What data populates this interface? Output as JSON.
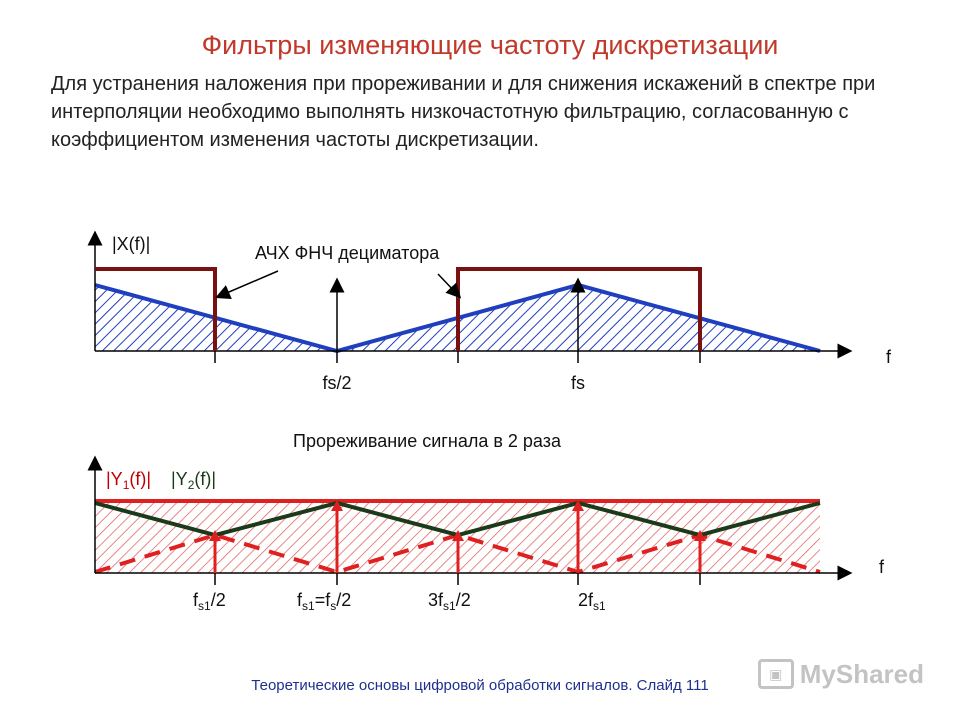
{
  "title": "Фильтры изменяющие частоту дискретизации",
  "intro": "Для устранения наложения при прореживании и для снижения искажений в спектре при интерполяции необходимо выполнять низкочастотную фильтрацию, согласованную с коэффициентом изменения частоты дискретизации.",
  "top_plot": {
    "y_label": "|X(f)|",
    "filter_label": "АЧХ ФНЧ дециматора",
    "f_label": "f",
    "tick_fs2": "fs/2",
    "tick_fs": "fs"
  },
  "bottom_plot": {
    "heading": "Прореживание сигнала в 2 раза",
    "y1_label": {
      "pre": "|Y",
      "sub": "1",
      "post": "(f)|"
    },
    "y2_label": {
      "pre": "|Y",
      "sub": "2",
      "post": "(f)|"
    },
    "f_label": "f",
    "tick1": {
      "pre": "f",
      "sub": "s1",
      "post": "/2"
    },
    "tick2": {
      "pre": "f",
      "sub": "s1",
      "mid": "=f",
      "sub2": "s",
      "post": "/2"
    },
    "tick3": {
      "pre": "3f",
      "sub": "s1",
      "post": "/2"
    },
    "tick4": {
      "pre": "2f",
      "sub": "s1",
      "post": ""
    }
  },
  "footer": "Теоретические основы цифровой обработки сигналов. Слайд 111",
  "watermark": {
    "icon": "myshared-logo-icon",
    "text": "MyShared"
  },
  "colors": {
    "title": "#c0392b",
    "spectrum": "#1f3fbf",
    "filter": "#7b1010",
    "red": "#e02020",
    "dark": "#1a3a1a"
  }
}
